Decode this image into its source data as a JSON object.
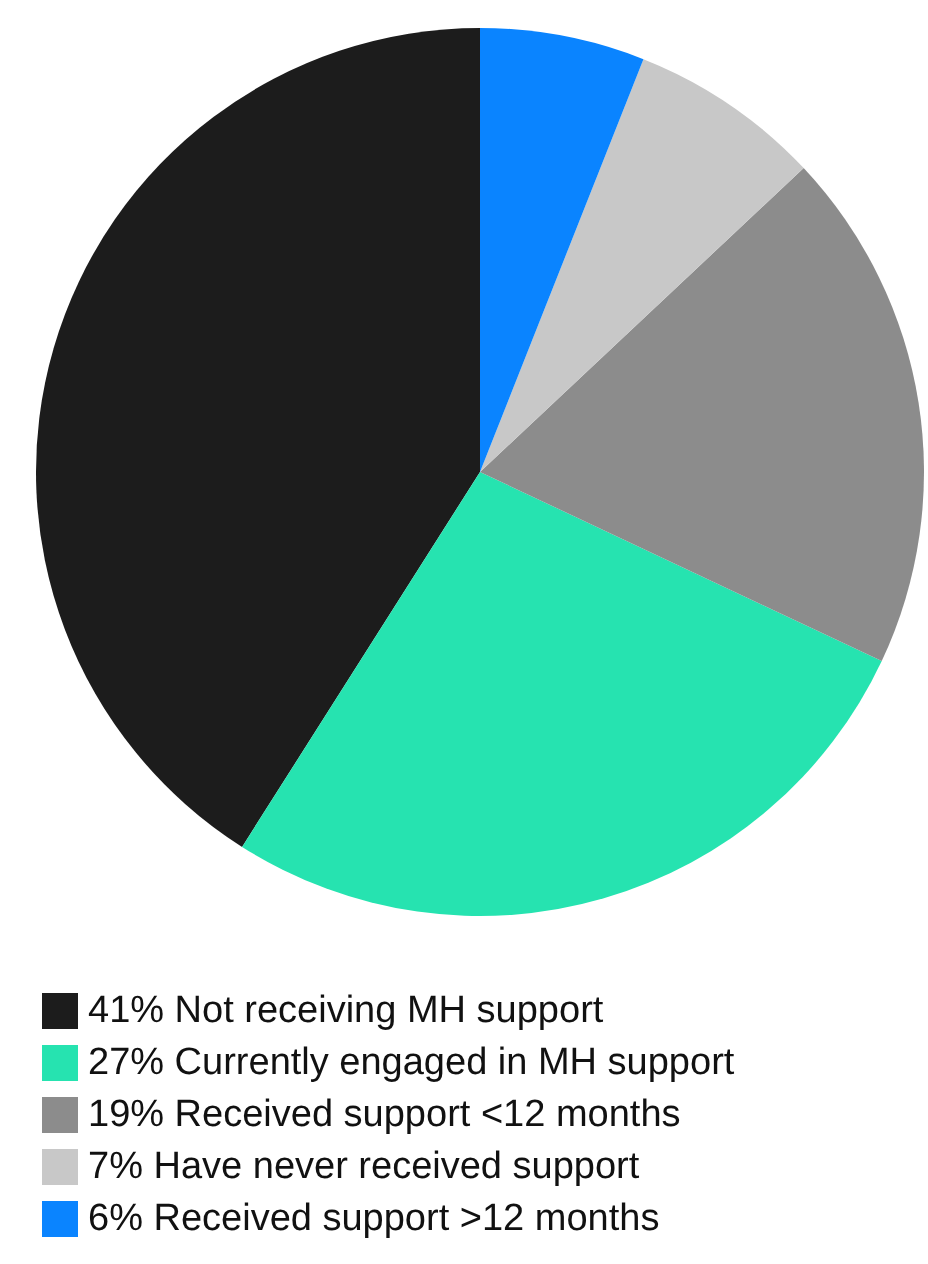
{
  "chart_data": {
    "type": "pie",
    "categories": [
      "41% Not receiving MH support",
      "27% Currently engaged in MH support",
      "19% Received support <12 months",
      "7% Have never received support",
      "6% Received support >12 months"
    ],
    "values": [
      41,
      27,
      19,
      7,
      6
    ],
    "colors": [
      "#1c1c1c",
      "#26e3b0",
      "#8c8c8c",
      "#c8c8c8",
      "#0a84ff"
    ],
    "legend": "bottom left"
  }
}
